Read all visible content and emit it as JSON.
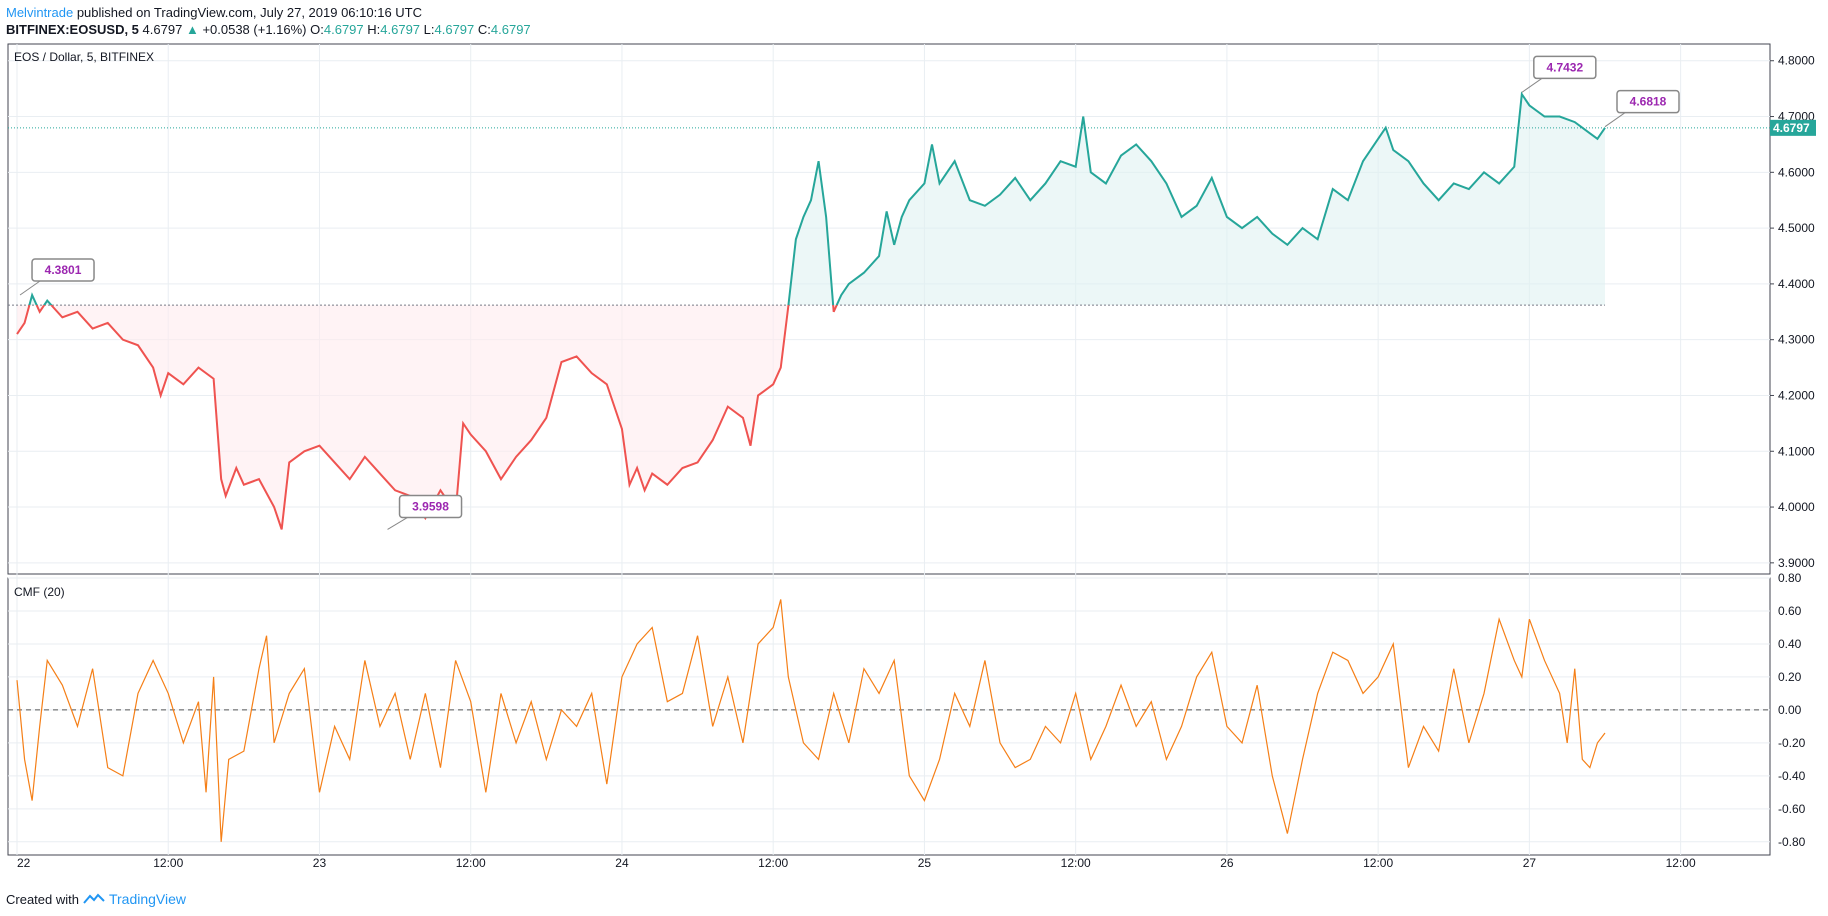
{
  "header": {
    "author": "Melvintrade",
    "published": " published on TradingView.com, July 27, 2019 06:10:16 UTC",
    "symbol": "BITFINEX:EOSUSD, 5",
    "last": "4.6797",
    "change_arrow": "▲",
    "change": "+0.0538 (+1.16%)",
    "o_label": "O:",
    "o": "4.6797",
    "h_label": "H:",
    "h": "4.6797",
    "l_label": "L:",
    "l": "4.6797",
    "c_label": "C:",
    "c": "4.6797"
  },
  "footer": {
    "created_with": "Created with",
    "brand": "TradingView"
  },
  "colors": {
    "down": "#ef5350",
    "up": "#26a69a",
    "cmf": "#f57f17",
    "text": "#131722",
    "grid": "#e9eef2",
    "baseline": "#26a69a",
    "pink_fill": "#ffebee",
    "teal_fill": "#e0f2f1"
  },
  "chart_data": [
    {
      "type": "line",
      "title": "EOS / Dollar, 5, BITFINEX",
      "x_ticks": [
        "22",
        "12:00",
        "23",
        "12:00",
        "24",
        "12:00",
        "25",
        "12:00",
        "26",
        "12:00",
        "27",
        "12:00"
      ],
      "y_ticks": [
        "4.8000",
        "4.7000",
        "4.6000",
        "4.5000",
        "4.4000",
        "4.3000",
        "4.2000",
        "4.1000",
        "4.0000",
        "3.9000"
      ],
      "ylim": [
        3.88,
        4.83
      ],
      "baseline": 4.362,
      "last_price_label": "4.6797",
      "last_price": 4.6797,
      "annotations": [
        {
          "label": "4.3801",
          "x": 0.02,
          "y": 4.3801
        },
        {
          "label": "3.9598",
          "x": 2.45,
          "y": 3.9598
        },
        {
          "label": "4.7432",
          "x": 9.95,
          "y": 4.7432
        },
        {
          "label": "4.6818",
          "x": 10.5,
          "y": 4.6818
        }
      ],
      "series_points": [
        [
          0.0,
          4.31
        ],
        [
          0.05,
          4.33
        ],
        [
          0.1,
          4.38
        ],
        [
          0.15,
          4.35
        ],
        [
          0.2,
          4.37
        ],
        [
          0.3,
          4.34
        ],
        [
          0.4,
          4.35
        ],
        [
          0.5,
          4.32
        ],
        [
          0.6,
          4.33
        ],
        [
          0.7,
          4.3
        ],
        [
          0.8,
          4.29
        ],
        [
          0.9,
          4.25
        ],
        [
          0.95,
          4.2
        ],
        [
          1.0,
          4.24
        ],
        [
          1.1,
          4.22
        ],
        [
          1.2,
          4.25
        ],
        [
          1.3,
          4.23
        ],
        [
          1.35,
          4.05
        ],
        [
          1.38,
          4.02
        ],
        [
          1.45,
          4.07
        ],
        [
          1.5,
          4.04
        ],
        [
          1.6,
          4.05
        ],
        [
          1.7,
          4.0
        ],
        [
          1.75,
          3.96
        ],
        [
          1.8,
          4.08
        ],
        [
          1.9,
          4.1
        ],
        [
          2.0,
          4.11
        ],
        [
          2.1,
          4.08
        ],
        [
          2.2,
          4.05
        ],
        [
          2.3,
          4.09
        ],
        [
          2.4,
          4.06
        ],
        [
          2.5,
          4.03
        ],
        [
          2.6,
          4.02
        ],
        [
          2.7,
          3.98
        ],
        [
          2.8,
          4.03
        ],
        [
          2.9,
          3.99
        ],
        [
          2.95,
          4.15
        ],
        [
          3.0,
          4.13
        ],
        [
          3.1,
          4.1
        ],
        [
          3.2,
          4.05
        ],
        [
          3.3,
          4.09
        ],
        [
          3.4,
          4.12
        ],
        [
          3.5,
          4.16
        ],
        [
          3.6,
          4.26
        ],
        [
          3.7,
          4.27
        ],
        [
          3.8,
          4.24
        ],
        [
          3.9,
          4.22
        ],
        [
          4.0,
          4.14
        ],
        [
          4.05,
          4.04
        ],
        [
          4.1,
          4.07
        ],
        [
          4.15,
          4.03
        ],
        [
          4.2,
          4.06
        ],
        [
          4.3,
          4.04
        ],
        [
          4.4,
          4.07
        ],
        [
          4.5,
          4.08
        ],
        [
          4.6,
          4.12
        ],
        [
          4.7,
          4.18
        ],
        [
          4.8,
          4.16
        ],
        [
          4.85,
          4.11
        ],
        [
          4.9,
          4.2
        ],
        [
          5.0,
          4.22
        ],
        [
          5.05,
          4.25
        ],
        [
          5.1,
          4.36
        ],
        [
          5.15,
          4.48
        ],
        [
          5.2,
          4.52
        ],
        [
          5.25,
          4.55
        ],
        [
          5.3,
          4.62
        ],
        [
          5.35,
          4.52
        ],
        [
          5.4,
          4.35
        ],
        [
          5.45,
          4.38
        ],
        [
          5.5,
          4.4
        ],
        [
          5.6,
          4.42
        ],
        [
          5.7,
          4.45
        ],
        [
          5.75,
          4.53
        ],
        [
          5.8,
          4.47
        ],
        [
          5.85,
          4.52
        ],
        [
          5.9,
          4.55
        ],
        [
          6.0,
          4.58
        ],
        [
          6.05,
          4.65
        ],
        [
          6.1,
          4.58
        ],
        [
          6.2,
          4.62
        ],
        [
          6.3,
          4.55
        ],
        [
          6.4,
          4.54
        ],
        [
          6.5,
          4.56
        ],
        [
          6.6,
          4.59
        ],
        [
          6.7,
          4.55
        ],
        [
          6.8,
          4.58
        ],
        [
          6.9,
          4.62
        ],
        [
          7.0,
          4.61
        ],
        [
          7.05,
          4.7
        ],
        [
          7.1,
          4.6
        ],
        [
          7.2,
          4.58
        ],
        [
          7.3,
          4.63
        ],
        [
          7.4,
          4.65
        ],
        [
          7.5,
          4.62
        ],
        [
          7.6,
          4.58
        ],
        [
          7.7,
          4.52
        ],
        [
          7.8,
          4.54
        ],
        [
          7.9,
          4.59
        ],
        [
          8.0,
          4.52
        ],
        [
          8.1,
          4.5
        ],
        [
          8.2,
          4.52
        ],
        [
          8.3,
          4.49
        ],
        [
          8.4,
          4.47
        ],
        [
          8.5,
          4.5
        ],
        [
          8.6,
          4.48
        ],
        [
          8.7,
          4.57
        ],
        [
          8.8,
          4.55
        ],
        [
          8.9,
          4.62
        ],
        [
          9.0,
          4.66
        ],
        [
          9.05,
          4.68
        ],
        [
          9.1,
          4.64
        ],
        [
          9.2,
          4.62
        ],
        [
          9.3,
          4.58
        ],
        [
          9.4,
          4.55
        ],
        [
          9.5,
          4.58
        ],
        [
          9.6,
          4.57
        ],
        [
          9.7,
          4.6
        ],
        [
          9.8,
          4.58
        ],
        [
          9.9,
          4.61
        ],
        [
          9.95,
          4.74
        ],
        [
          10.0,
          4.72
        ],
        [
          10.1,
          4.7
        ],
        [
          10.2,
          4.7
        ],
        [
          10.3,
          4.69
        ],
        [
          10.4,
          4.67
        ],
        [
          10.45,
          4.66
        ],
        [
          10.5,
          4.6797
        ]
      ]
    },
    {
      "type": "line",
      "title": "CMF (20)",
      "y_ticks": [
        "0.80",
        "0.60",
        "0.40",
        "0.20",
        "0.00",
        "-0.20",
        "-0.40",
        "-0.60",
        "-0.80"
      ],
      "ylim": [
        -0.88,
        0.8
      ],
      "zero_line": 0.0,
      "series_points": [
        [
          0.0,
          0.18
        ],
        [
          0.05,
          -0.3
        ],
        [
          0.1,
          -0.55
        ],
        [
          0.15,
          -0.1
        ],
        [
          0.2,
          0.3
        ],
        [
          0.3,
          0.15
        ],
        [
          0.4,
          -0.1
        ],
        [
          0.5,
          0.25
        ],
        [
          0.6,
          -0.35
        ],
        [
          0.7,
          -0.4
        ],
        [
          0.8,
          0.1
        ],
        [
          0.9,
          0.3
        ],
        [
          1.0,
          0.1
        ],
        [
          1.1,
          -0.2
        ],
        [
          1.2,
          0.05
        ],
        [
          1.25,
          -0.5
        ],
        [
          1.3,
          0.2
        ],
        [
          1.35,
          -0.8
        ],
        [
          1.4,
          -0.3
        ],
        [
          1.5,
          -0.25
        ],
        [
          1.6,
          0.25
        ],
        [
          1.65,
          0.45
        ],
        [
          1.7,
          -0.2
        ],
        [
          1.8,
          0.1
        ],
        [
          1.9,
          0.25
        ],
        [
          2.0,
          -0.5
        ],
        [
          2.1,
          -0.1
        ],
        [
          2.2,
          -0.3
        ],
        [
          2.3,
          0.3
        ],
        [
          2.4,
          -0.1
        ],
        [
          2.5,
          0.1
        ],
        [
          2.6,
          -0.3
        ],
        [
          2.7,
          0.1
        ],
        [
          2.8,
          -0.35
        ],
        [
          2.9,
          0.3
        ],
        [
          3.0,
          0.05
        ],
        [
          3.1,
          -0.5
        ],
        [
          3.2,
          0.1
        ],
        [
          3.3,
          -0.2
        ],
        [
          3.4,
          0.05
        ],
        [
          3.5,
          -0.3
        ],
        [
          3.6,
          0.0
        ],
        [
          3.7,
          -0.1
        ],
        [
          3.8,
          0.1
        ],
        [
          3.9,
          -0.45
        ],
        [
          4.0,
          0.2
        ],
        [
          4.1,
          0.4
        ],
        [
          4.2,
          0.5
        ],
        [
          4.3,
          0.05
        ],
        [
          4.4,
          0.1
        ],
        [
          4.5,
          0.45
        ],
        [
          4.6,
          -0.1
        ],
        [
          4.7,
          0.2
        ],
        [
          4.8,
          -0.2
        ],
        [
          4.9,
          0.4
        ],
        [
          5.0,
          0.5
        ],
        [
          5.05,
          0.67
        ],
        [
          5.1,
          0.2
        ],
        [
          5.2,
          -0.2
        ],
        [
          5.3,
          -0.3
        ],
        [
          5.4,
          0.1
        ],
        [
          5.5,
          -0.2
        ],
        [
          5.6,
          0.25
        ],
        [
          5.7,
          0.1
        ],
        [
          5.8,
          0.3
        ],
        [
          5.9,
          -0.4
        ],
        [
          6.0,
          -0.55
        ],
        [
          6.1,
          -0.3
        ],
        [
          6.2,
          0.1
        ],
        [
          6.3,
          -0.1
        ],
        [
          6.4,
          0.3
        ],
        [
          6.5,
          -0.2
        ],
        [
          6.6,
          -0.35
        ],
        [
          6.7,
          -0.3
        ],
        [
          6.8,
          -0.1
        ],
        [
          6.9,
          -0.2
        ],
        [
          7.0,
          0.1
        ],
        [
          7.1,
          -0.3
        ],
        [
          7.2,
          -0.1
        ],
        [
          7.3,
          0.15
        ],
        [
          7.4,
          -0.1
        ],
        [
          7.5,
          0.05
        ],
        [
          7.6,
          -0.3
        ],
        [
          7.7,
          -0.1
        ],
        [
          7.8,
          0.2
        ],
        [
          7.9,
          0.35
        ],
        [
          8.0,
          -0.1
        ],
        [
          8.1,
          -0.2
        ],
        [
          8.2,
          0.15
        ],
        [
          8.3,
          -0.4
        ],
        [
          8.4,
          -0.75
        ],
        [
          8.5,
          -0.3
        ],
        [
          8.6,
          0.1
        ],
        [
          8.7,
          0.35
        ],
        [
          8.8,
          0.3
        ],
        [
          8.9,
          0.1
        ],
        [
          9.0,
          0.2
        ],
        [
          9.1,
          0.4
        ],
        [
          9.2,
          -0.35
        ],
        [
          9.3,
          -0.1
        ],
        [
          9.4,
          -0.25
        ],
        [
          9.5,
          0.25
        ],
        [
          9.6,
          -0.2
        ],
        [
          9.7,
          0.1
        ],
        [
          9.8,
          0.55
        ],
        [
          9.9,
          0.3
        ],
        [
          9.95,
          0.2
        ],
        [
          10.0,
          0.55
        ],
        [
          10.1,
          0.3
        ],
        [
          10.2,
          0.1
        ],
        [
          10.25,
          -0.2
        ],
        [
          10.3,
          0.25
        ],
        [
          10.35,
          -0.3
        ],
        [
          10.4,
          -0.35
        ],
        [
          10.45,
          -0.2
        ],
        [
          10.5,
          -0.14
        ]
      ]
    }
  ]
}
